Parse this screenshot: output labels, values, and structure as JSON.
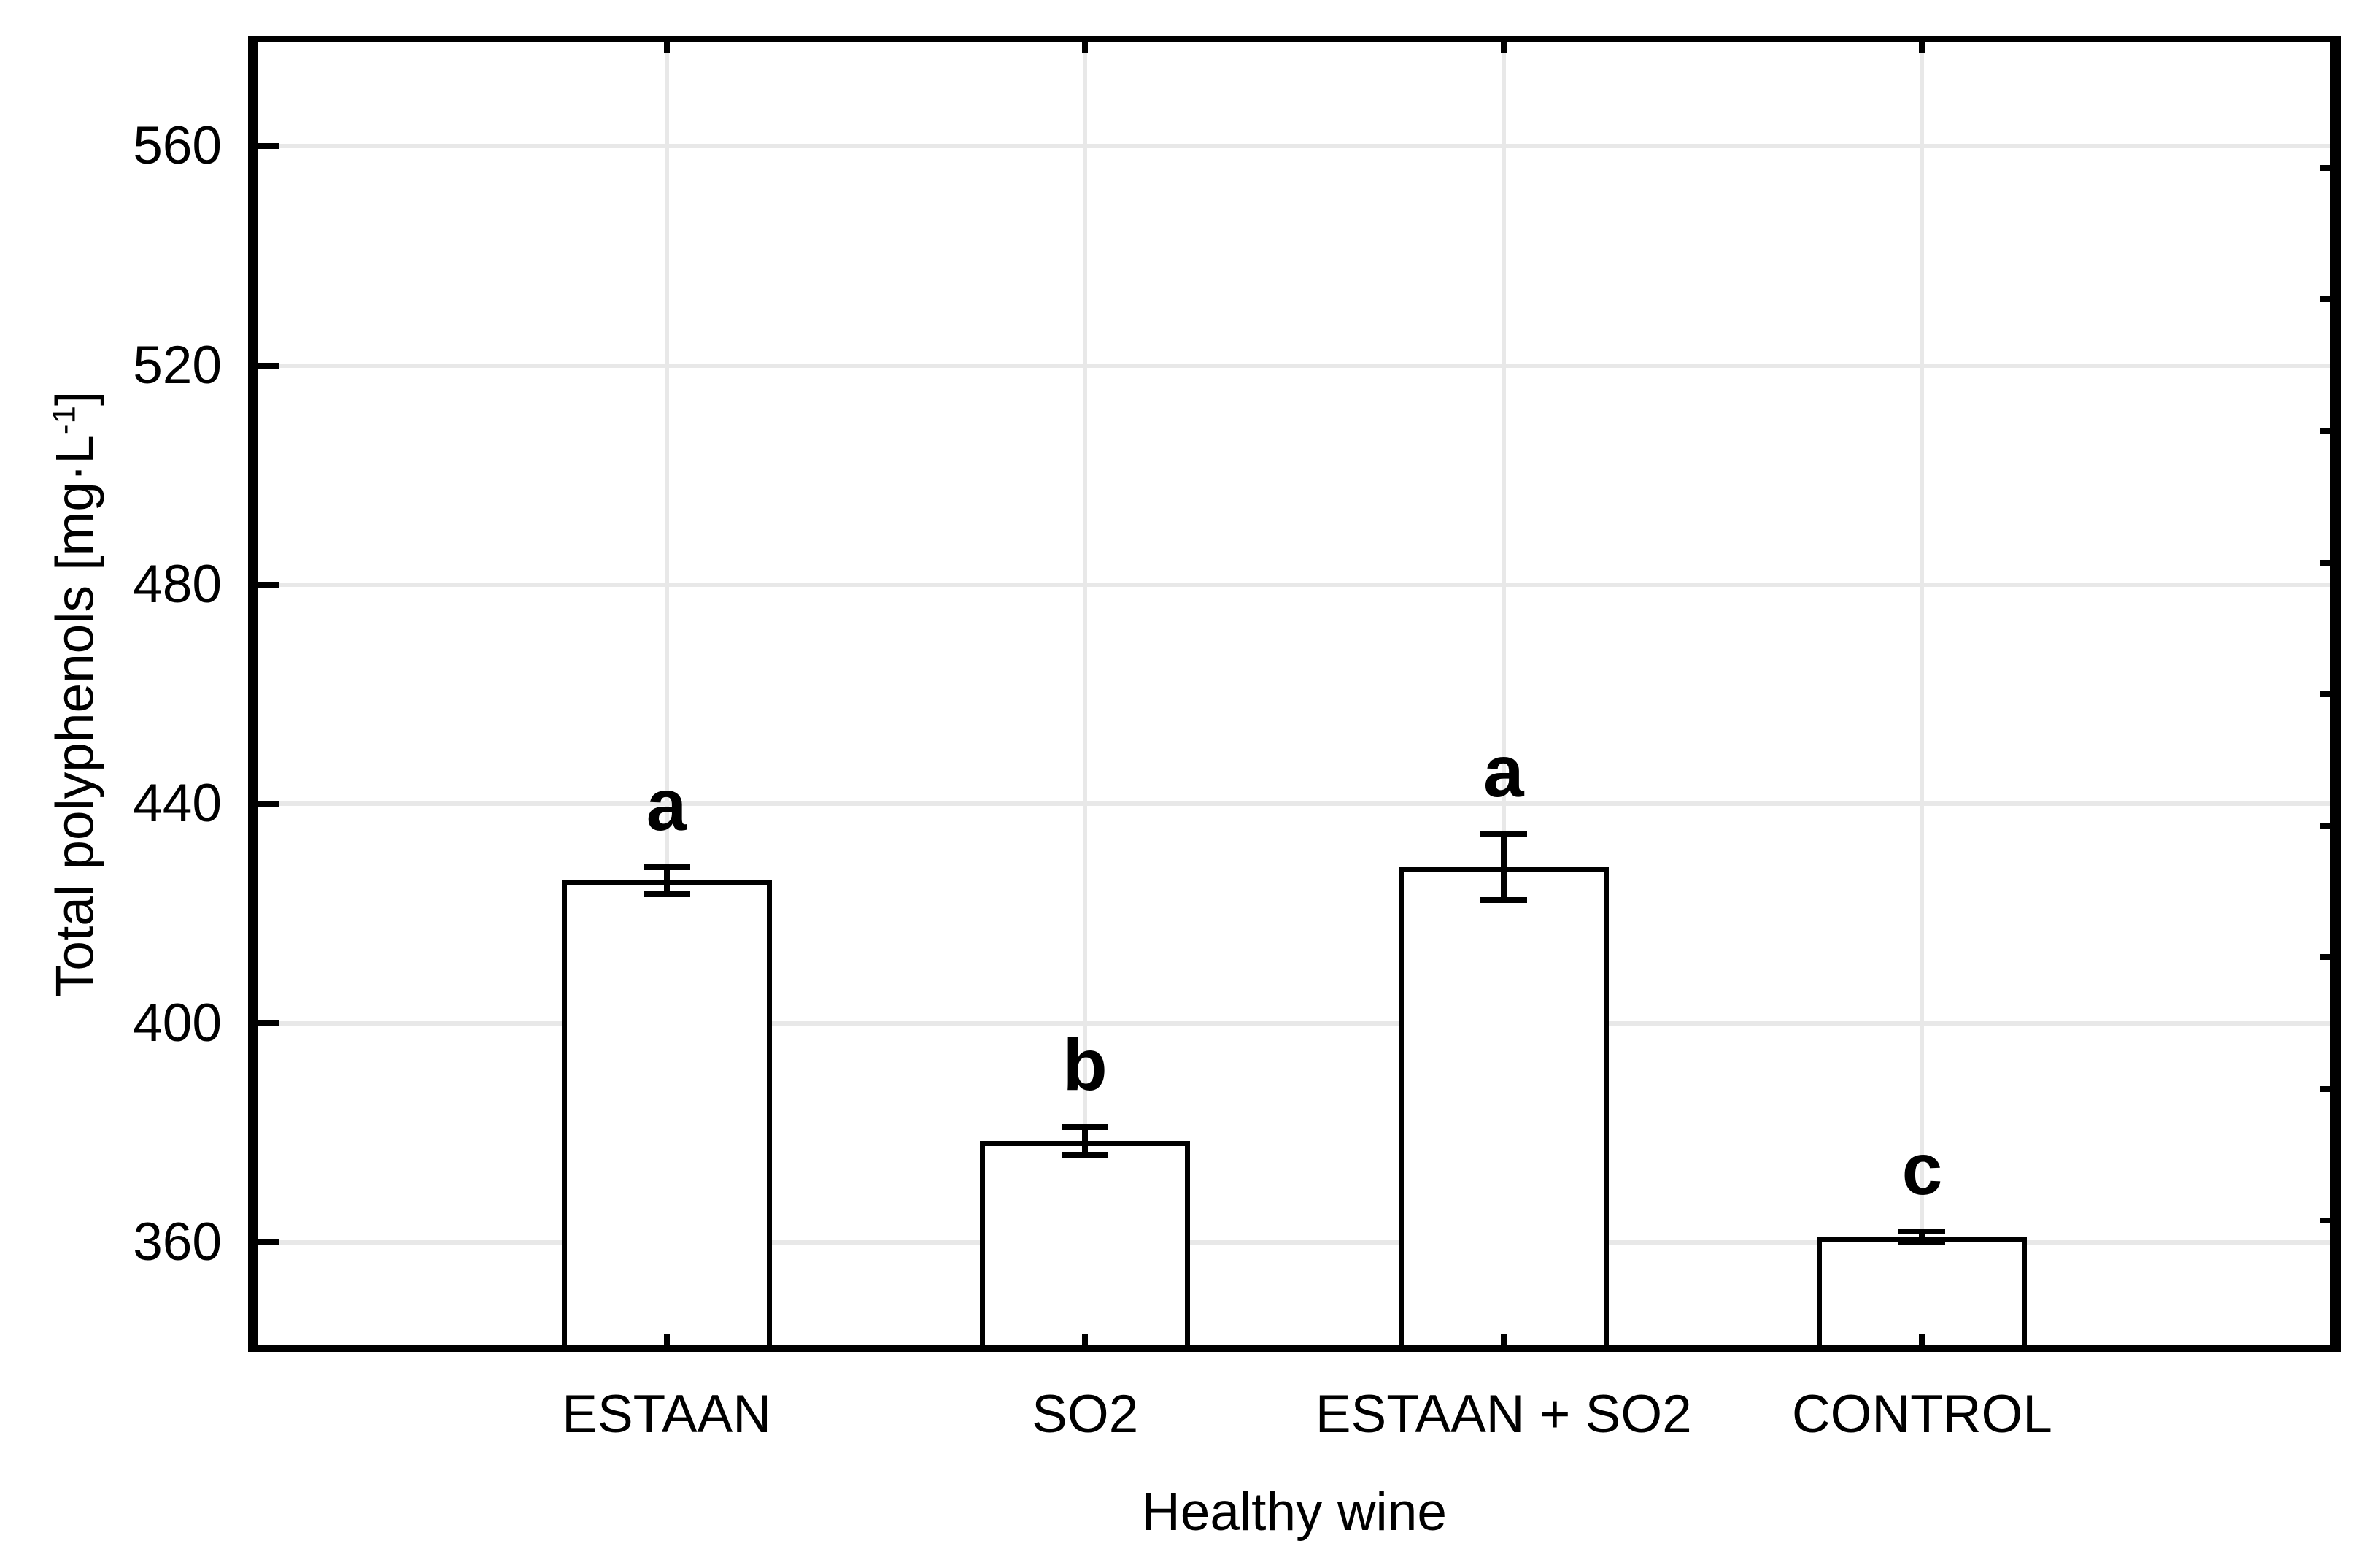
{
  "chart_data": {
    "type": "bar",
    "title": "",
    "xlabel": "Healthy wine",
    "ylabel": "Total polyphenols [mg·L⁻¹]",
    "ylabel_parts": {
      "base": "Total polyphenols [mg·L",
      "superscript": "-1",
      "close": "]"
    },
    "categories": [
      "ESTAAN",
      "SO2",
      "ESTAAN + SO2",
      "CONTROL"
    ],
    "values": [
      426,
      378.5,
      428.5,
      361
    ],
    "errors": [
      2.5,
      2.5,
      6,
      1
    ],
    "significance_letters": [
      "a",
      "b",
      "a",
      "c"
    ],
    "ylim": [
      340,
      580
    ],
    "yticks": [
      360,
      400,
      440,
      480,
      520,
      560
    ],
    "grid": true,
    "legend_position": "none",
    "bar_fill": "#ffffff",
    "bar_border_color": "#000000",
    "axis_color": "#000000",
    "gridline_color": "#e8e8e8",
    "error_bar_style": "T-caps",
    "right_axis_divisions": 10
  }
}
